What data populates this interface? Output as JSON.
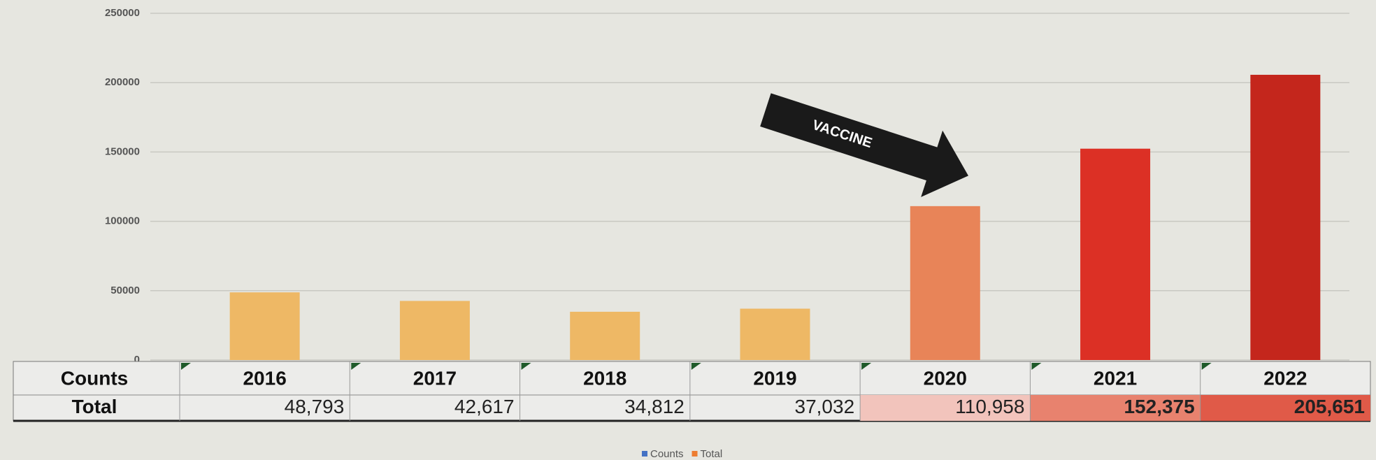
{
  "chart_data": {
    "type": "bar",
    "categories": [
      "2016",
      "2017",
      "2018",
      "2019",
      "2020",
      "2021",
      "2022"
    ],
    "values": [
      48793,
      42617,
      34812,
      37032,
      110958,
      152375,
      205651
    ],
    "value_labels": [
      "48,793",
      "42,617",
      "34,812",
      "37,032",
      "110,958",
      "152,375",
      "205,651"
    ],
    "colors": [
      "#eeb865",
      "#eeb865",
      "#eeb865",
      "#eeb865",
      "#e88458",
      "#dc3025",
      "#c4261c"
    ],
    "cell_colors": [
      null,
      null,
      null,
      null,
      "#f2c4bc",
      "#e8826e",
      "#e05a48"
    ],
    "ylim": [
      0,
      250000
    ],
    "yticks": [
      0,
      50000,
      100000,
      150000,
      200000,
      250000
    ],
    "grid": true,
    "table_header": "Counts",
    "table_row_label": "Total",
    "annotation": "VACCINE",
    "legend": [
      {
        "name": "Counts",
        "color": "#4472c4"
      },
      {
        "name": "Total",
        "color": "#ed7d31"
      }
    ]
  }
}
